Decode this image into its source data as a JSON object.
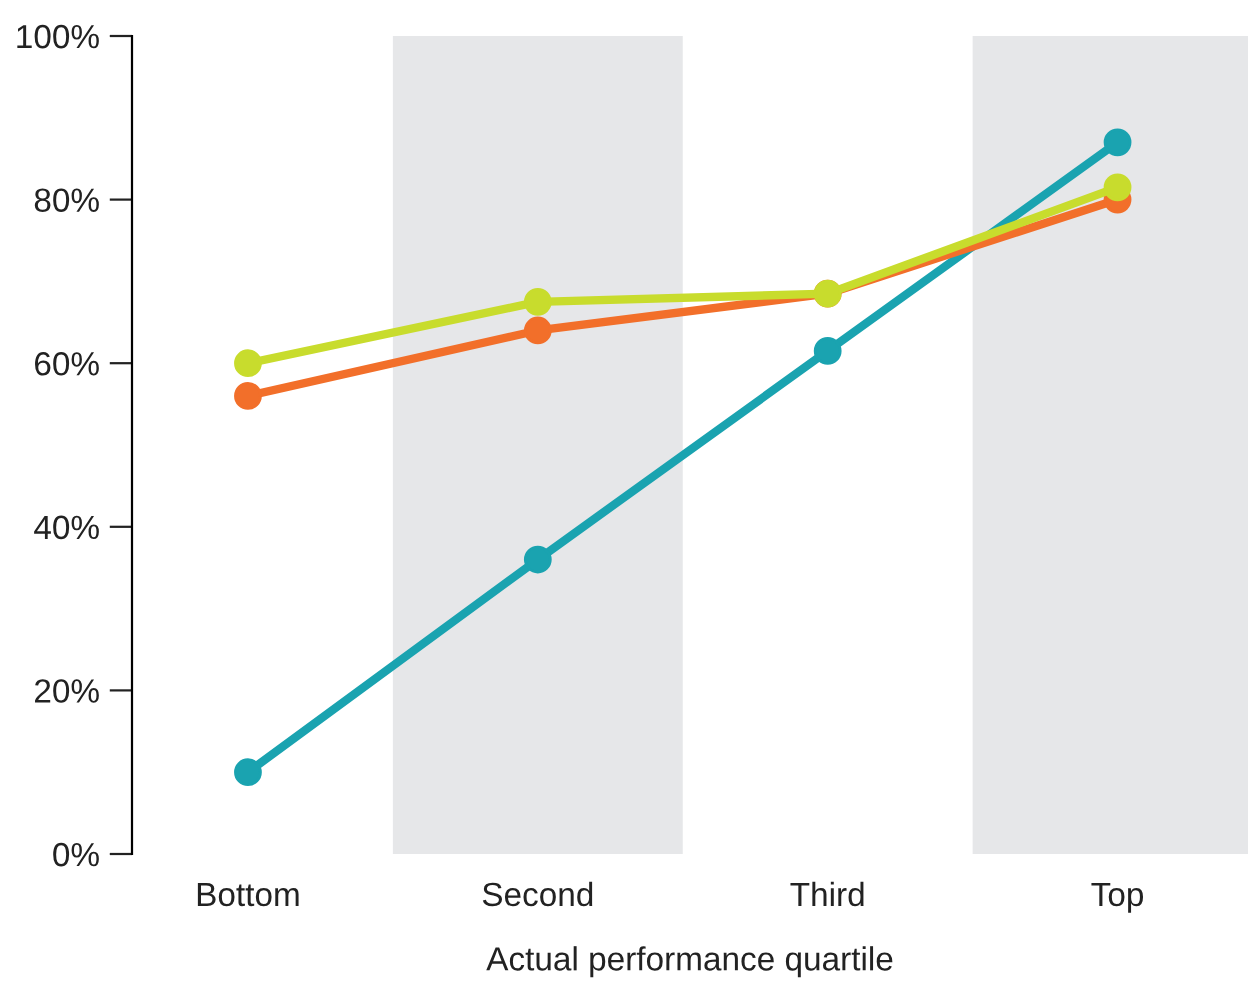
{
  "chart_data": {
    "type": "line",
    "xlabel": "Actual performance quartile",
    "categories": [
      "Bottom",
      "Second",
      "Third",
      "Top"
    ],
    "series": [
      {
        "color": "#1aa3b0",
        "values": [
          10,
          36,
          61.5,
          87
        ]
      },
      {
        "color": "#f26f2a",
        "values": [
          56,
          64,
          68.5,
          80
        ]
      },
      {
        "color": "#c8dc2d",
        "values": [
          60,
          67.5,
          68.5,
          81.5
        ]
      }
    ],
    "ylim": [
      0,
      100
    ],
    "yticks": [
      {
        "value": 0,
        "label": "0%"
      },
      {
        "value": 20,
        "label": "20%"
      },
      {
        "value": 40,
        "label": "40%"
      },
      {
        "value": 60,
        "label": "60%"
      },
      {
        "value": 80,
        "label": "80%"
      },
      {
        "value": 100,
        "label": "100%"
      }
    ],
    "bands": [
      {
        "axis": "x",
        "from": "Second",
        "to": "Second",
        "color": "#e6e7e9"
      },
      {
        "axis": "x",
        "from": "Top",
        "to": "Top",
        "color": "#e6e7e9"
      }
    ],
    "marker": "circle",
    "line_style": "solid",
    "grid": false,
    "legend": false
  }
}
